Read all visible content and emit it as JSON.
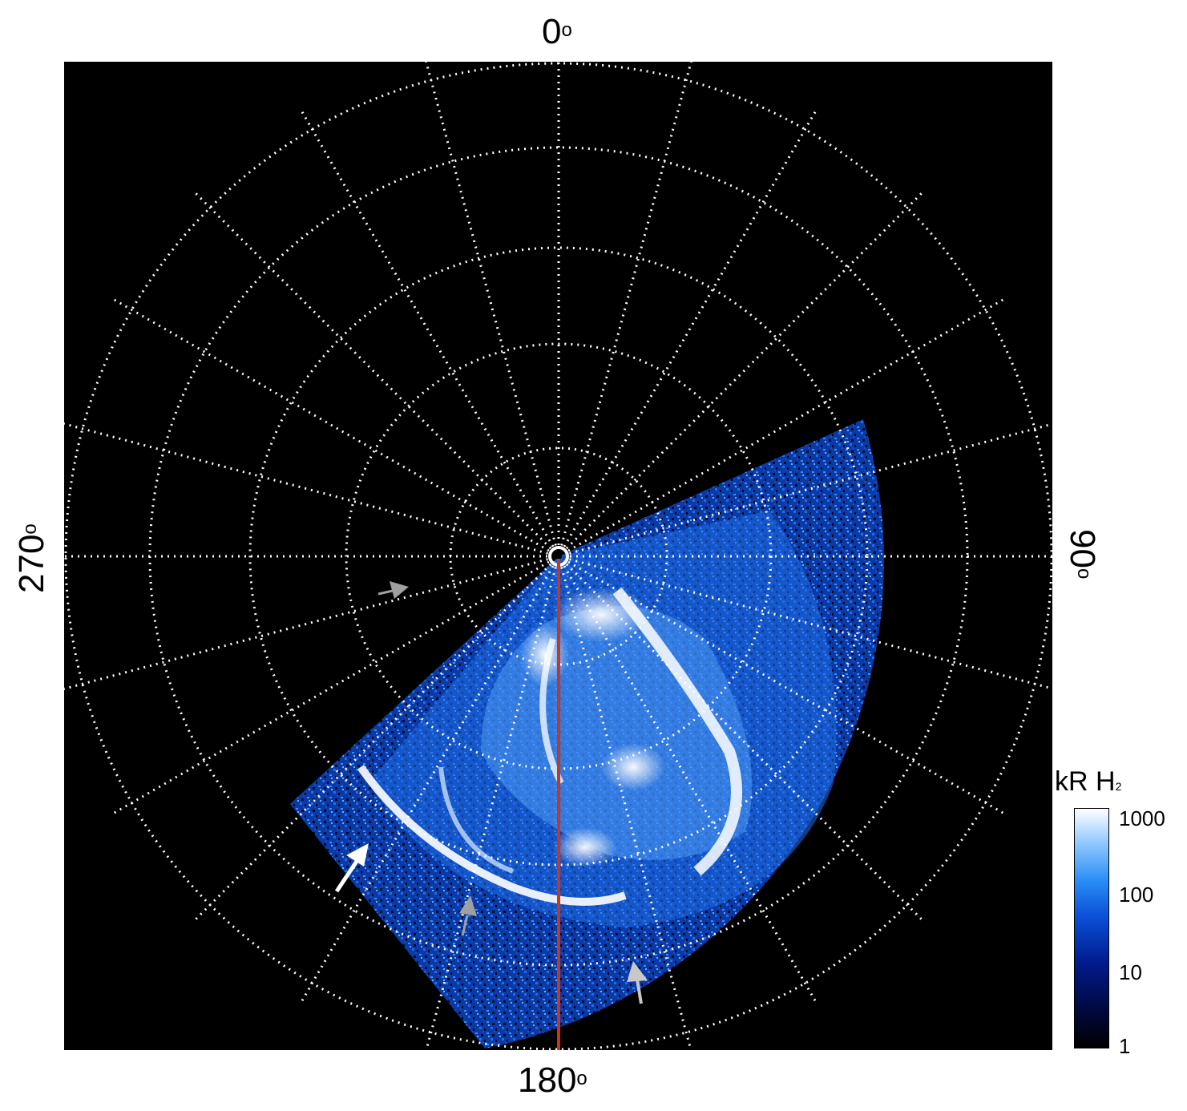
{
  "labels": {
    "top": "0",
    "right": "90",
    "bottom": "180",
    "left": "270",
    "degree_mark": "o"
  },
  "colorbar": {
    "title_main": "kR H",
    "title_sub": "2",
    "ticks": [
      "1000",
      "100",
      "10",
      "1"
    ],
    "colors": [
      "#000000",
      "#00083a",
      "#001a8a",
      "#0a50d8",
      "#2a8ef6",
      "#8cc6ff",
      "#ffffff"
    ]
  },
  "colors": {
    "background": "#000000",
    "grid": "#ffffff",
    "meridian_line": "#c8361b",
    "aurora_dim": "#0a3fb0",
    "aurora_mid": "#2a8ef6",
    "aurora_bright": "#ffffff",
    "arrow_white": "#ffffff",
    "arrow_gray": "#a0a0a0"
  },
  "icons": {
    "arrows": [
      "white-arrow-icon",
      "gray-arrow-icon"
    ]
  }
}
